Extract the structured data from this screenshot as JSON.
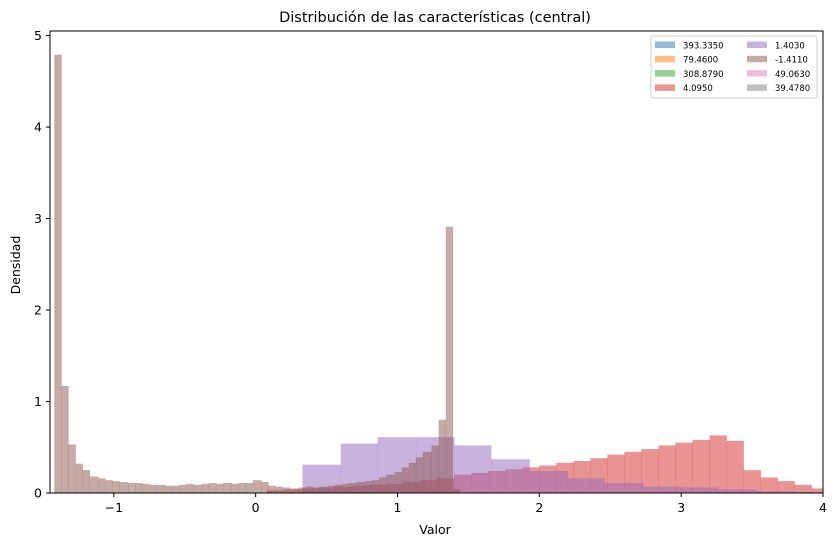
{
  "chart_data": {
    "type": "histogram",
    "title": "Distribución de las características (central)",
    "xlabel": "Valor",
    "ylabel": "Densidad",
    "xlim": [
      -1.45,
      4.0
    ],
    "ylim": [
      0,
      5.05
    ],
    "xticks": [
      -1,
      0,
      1,
      2,
      3,
      4
    ],
    "yticks": [
      0,
      1,
      2,
      3,
      4,
      5
    ],
    "grid": false,
    "legend": {
      "placement": "top-right",
      "columns": 2
    },
    "series": [
      {
        "name": "393.3350",
        "color": "#1f77b4",
        "bins": []
      },
      {
        "name": "79.4600",
        "color": "#ff7f0e",
        "bins": []
      },
      {
        "name": "308.8790",
        "color": "#2ca02c",
        "bins": []
      },
      {
        "name": "4.0950",
        "color": "#d62728",
        "bins": [
          [
            0.08,
            0.2,
            0.03
          ],
          [
            0.2,
            0.32,
            0.04
          ],
          [
            0.32,
            0.44,
            0.05
          ],
          [
            0.44,
            0.56,
            0.06
          ],
          [
            0.56,
            0.68,
            0.07
          ],
          [
            0.68,
            0.8,
            0.08
          ],
          [
            0.8,
            0.92,
            0.09
          ],
          [
            0.92,
            1.04,
            0.1
          ],
          [
            1.04,
            1.16,
            0.12
          ],
          [
            1.16,
            1.28,
            0.14
          ],
          [
            1.28,
            1.4,
            0.16
          ],
          [
            1.4,
            1.52,
            0.2
          ],
          [
            1.52,
            1.64,
            0.22
          ],
          [
            1.64,
            1.76,
            0.24
          ],
          [
            1.76,
            1.88,
            0.26
          ],
          [
            1.88,
            2.0,
            0.28
          ],
          [
            2.0,
            2.12,
            0.3
          ],
          [
            2.12,
            2.24,
            0.33
          ],
          [
            2.24,
            2.36,
            0.35
          ],
          [
            2.36,
            2.48,
            0.38
          ],
          [
            2.48,
            2.6,
            0.42
          ],
          [
            2.6,
            2.72,
            0.45
          ],
          [
            2.72,
            2.84,
            0.48
          ],
          [
            2.84,
            2.96,
            0.52
          ],
          [
            2.96,
            3.08,
            0.55
          ],
          [
            3.08,
            3.2,
            0.58
          ],
          [
            3.2,
            3.32,
            0.63
          ],
          [
            3.32,
            3.44,
            0.57
          ],
          [
            3.44,
            3.56,
            0.25
          ],
          [
            3.56,
            3.68,
            0.17
          ],
          [
            3.68,
            3.8,
            0.13
          ],
          [
            3.8,
            3.92,
            0.09
          ],
          [
            3.92,
            4.04,
            0.05
          ]
        ]
      },
      {
        "name": "1.4030",
        "color": "#9467bd",
        "bins": [
          [
            0.33,
            0.6,
            0.31
          ],
          [
            0.6,
            0.86,
            0.54
          ],
          [
            0.86,
            1.13,
            0.61
          ],
          [
            1.13,
            1.4,
            0.61
          ],
          [
            1.4,
            1.66,
            0.52
          ],
          [
            1.66,
            1.93,
            0.37
          ],
          [
            1.93,
            2.2,
            0.24
          ],
          [
            2.2,
            2.46,
            0.16
          ],
          [
            2.46,
            2.73,
            0.11
          ],
          [
            2.73,
            3.0,
            0.07
          ],
          [
            3.0,
            3.26,
            0.06
          ],
          [
            3.26,
            3.53,
            0.04
          ],
          [
            3.53,
            3.8,
            0.02
          ],
          [
            3.8,
            4.06,
            0.01
          ]
        ]
      },
      {
        "name": "-1.4110",
        "color": "#8c564b",
        "bins": [
          [
            -1.42,
            -1.37,
            4.79
          ],
          [
            -1.37,
            -1.32,
            1.17
          ],
          [
            -1.32,
            -1.27,
            0.53
          ],
          [
            -1.27,
            -1.22,
            0.32
          ],
          [
            -1.22,
            -1.17,
            0.25
          ],
          [
            -1.17,
            -1.11,
            0.18
          ],
          [
            -1.11,
            -1.06,
            0.16
          ],
          [
            -1.06,
            -1.01,
            0.14
          ],
          [
            -1.01,
            -0.96,
            0.13
          ],
          [
            -0.96,
            -0.9,
            0.12
          ],
          [
            -0.9,
            -0.85,
            0.11
          ],
          [
            -0.85,
            -0.8,
            0.11
          ],
          [
            -0.8,
            -0.75,
            0.1
          ],
          [
            -0.75,
            -0.7,
            0.09
          ],
          [
            -0.7,
            -0.64,
            0.09
          ],
          [
            -0.64,
            -0.59,
            0.08
          ],
          [
            -0.59,
            -0.54,
            0.08
          ],
          [
            -0.54,
            -0.49,
            0.09
          ],
          [
            -0.49,
            -0.44,
            0.1
          ],
          [
            -0.44,
            -0.38,
            0.09
          ],
          [
            -0.38,
            -0.33,
            0.1
          ],
          [
            -0.33,
            -0.28,
            0.11
          ],
          [
            -0.28,
            -0.23,
            0.1
          ],
          [
            -0.23,
            -0.17,
            0.11
          ],
          [
            -0.17,
            -0.12,
            0.1
          ],
          [
            -0.12,
            -0.07,
            0.11
          ],
          [
            -0.07,
            -0.02,
            0.11
          ],
          [
            -0.02,
            0.04,
            0.14
          ],
          [
            0.04,
            0.09,
            0.12
          ],
          [
            0.09,
            0.14,
            0.08
          ],
          [
            0.14,
            0.19,
            0.07
          ],
          [
            0.19,
            0.24,
            0.06
          ],
          [
            0.24,
            0.3,
            0.05
          ],
          [
            0.3,
            0.35,
            0.06
          ],
          [
            0.35,
            0.4,
            0.07
          ],
          [
            0.4,
            0.45,
            0.06
          ],
          [
            0.45,
            0.51,
            0.07
          ],
          [
            0.51,
            0.56,
            0.08
          ],
          [
            0.56,
            0.61,
            0.09
          ],
          [
            0.61,
            0.66,
            0.1
          ],
          [
            0.66,
            0.71,
            0.11
          ],
          [
            0.71,
            0.77,
            0.12
          ],
          [
            0.77,
            0.82,
            0.13
          ],
          [
            0.82,
            0.87,
            0.14
          ],
          [
            0.87,
            0.92,
            0.17
          ],
          [
            0.92,
            0.98,
            0.2
          ],
          [
            0.98,
            1.03,
            0.23
          ],
          [
            1.03,
            1.08,
            0.28
          ],
          [
            1.08,
            1.13,
            0.33
          ],
          [
            1.13,
            1.18,
            0.39
          ],
          [
            1.18,
            1.24,
            0.45
          ],
          [
            1.24,
            1.29,
            0.52
          ],
          [
            1.29,
            1.34,
            0.8
          ],
          [
            1.34,
            1.39,
            2.91
          ],
          [
            1.39,
            1.44,
            0.04
          ]
        ]
      },
      {
        "name": "49.0630",
        "color": "#e377c2",
        "bins": []
      },
      {
        "name": "39.4780",
        "color": "#7f7f7f",
        "bins": []
      }
    ]
  }
}
